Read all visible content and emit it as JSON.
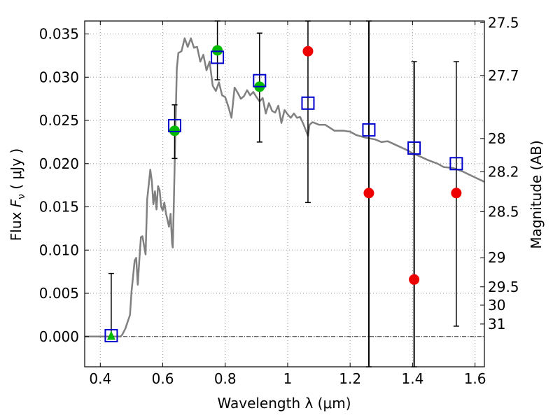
{
  "chart_data": {
    "type": "scatter",
    "xlabel": "Wavelength  λ (μm)",
    "ylabel_main": "Flux  ",
    "ylabel_sym": "F",
    "ylabel_sub": "ν",
    "ylabel_unit": "  ( μJy )",
    "y2label": "Magnitude (AB)",
    "xlim": [
      0.35,
      1.63
    ],
    "ylim": [
      -0.0035,
      0.0365
    ],
    "grid": true,
    "x_ticks": [
      {
        "v": 0.4,
        "label": "0.4"
      },
      {
        "v": 0.6,
        "label": "0.6"
      },
      {
        "v": 0.8,
        "label": "0.8"
      },
      {
        "v": 1.0,
        "label": "1"
      },
      {
        "v": 1.2,
        "label": "1.2"
      },
      {
        "v": 1.4,
        "label": "1.4"
      },
      {
        "v": 1.6,
        "label": "1.6"
      }
    ],
    "y_ticks": [
      {
        "v": 0.0,
        "label": "0.000"
      },
      {
        "v": 0.005,
        "label": "0.005"
      },
      {
        "v": 0.01,
        "label": "0.010"
      },
      {
        "v": 0.015,
        "label": "0.015"
      },
      {
        "v": 0.02,
        "label": "0.020"
      },
      {
        "v": 0.025,
        "label": "0.025"
      },
      {
        "v": 0.03,
        "label": "0.030"
      },
      {
        "v": 0.035,
        "label": "0.035"
      }
    ],
    "y2_ticks": [
      {
        "flux": 0.03631,
        "label": "27.5"
      },
      {
        "flux": 0.0302,
        "label": "27.7"
      },
      {
        "flux": 0.02291,
        "label": "28"
      },
      {
        "flux": 0.01905,
        "label": "28.2"
      },
      {
        "flux": 0.01445,
        "label": "28.5"
      },
      {
        "flux": 0.00912,
        "label": "29"
      },
      {
        "flux": 0.00575,
        "label": "29.5"
      },
      {
        "flux": 0.00363,
        "label": "30"
      },
      {
        "flux": 0.00145,
        "label": "31"
      }
    ],
    "colors": {
      "model": "#808080",
      "model_points": "#0000cc",
      "detections": "#00bb00",
      "upper_limits": "#ee0000",
      "errorbars": "#000000"
    },
    "series": [
      {
        "kind": "model_spectrum",
        "x": [
          0.35,
          0.4,
          0.45,
          0.465,
          0.47,
          0.48,
          0.495,
          0.5,
          0.51,
          0.515,
          0.52,
          0.525,
          0.53,
          0.535,
          0.545,
          0.55,
          0.56,
          0.565,
          0.57,
          0.575,
          0.58,
          0.585,
          0.59,
          0.595,
          0.6,
          0.605,
          0.61,
          0.615,
          0.62,
          0.625,
          0.63,
          0.632,
          0.635,
          0.64,
          0.645,
          0.65,
          0.66,
          0.67,
          0.68,
          0.69,
          0.7,
          0.71,
          0.72,
          0.73,
          0.74,
          0.75,
          0.76,
          0.77,
          0.78,
          0.79,
          0.8,
          0.81,
          0.82,
          0.83,
          0.84,
          0.85,
          0.86,
          0.87,
          0.88,
          0.89,
          0.9,
          0.91,
          0.92,
          0.93,
          0.94,
          0.95,
          0.96,
          0.97,
          0.98,
          0.99,
          1.0,
          1.01,
          1.02,
          1.03,
          1.04,
          1.05,
          1.06,
          1.065,
          1.07,
          1.08,
          1.1,
          1.12,
          1.15,
          1.18,
          1.2,
          1.22,
          1.25,
          1.28,
          1.3,
          1.32,
          1.35,
          1.38,
          1.4,
          1.42,
          1.45,
          1.48,
          1.5,
          1.53,
          1.56,
          1.6,
          1.63
        ],
        "y": [
          0.0,
          0.0,
          0.0,
          0.0,
          0.0002,
          0.0009,
          0.0025,
          0.0052,
          0.0088,
          0.0091,
          0.006,
          0.0089,
          0.0115,
          0.0116,
          0.0095,
          0.0158,
          0.0193,
          0.018,
          0.0153,
          0.0168,
          0.0147,
          0.0174,
          0.0169,
          0.015,
          0.0146,
          0.0155,
          0.0143,
          0.0135,
          0.0127,
          0.0142,
          0.0107,
          0.0103,
          0.0145,
          0.0232,
          0.031,
          0.0328,
          0.033,
          0.0345,
          0.0335,
          0.0345,
          0.0334,
          0.0335,
          0.0318,
          0.0326,
          0.0308,
          0.0318,
          0.029,
          0.0284,
          0.0294,
          0.0279,
          0.0277,
          0.0266,
          0.0253,
          0.0288,
          0.0282,
          0.0275,
          0.0278,
          0.0285,
          0.0279,
          0.0283,
          0.0277,
          0.0272,
          0.0276,
          0.0258,
          0.027,
          0.0261,
          0.0259,
          0.0267,
          0.0247,
          0.0262,
          0.0257,
          0.0253,
          0.0258,
          0.0253,
          0.0254,
          0.0246,
          0.0237,
          0.0232,
          0.0245,
          0.0248,
          0.0245,
          0.0245,
          0.0238,
          0.0238,
          0.0237,
          0.0233,
          0.023,
          0.0228,
          0.0225,
          0.0226,
          0.0221,
          0.0216,
          0.0212,
          0.0209,
          0.0204,
          0.02,
          0.0196,
          0.0195,
          0.0191,
          0.0184,
          0.0179
        ]
      },
      {
        "kind": "model_points",
        "marker": "open-square",
        "x": [
          0.435,
          0.638,
          0.775,
          0.91,
          1.065,
          1.26,
          1.405,
          1.54
        ],
        "y": [
          0.0001,
          0.0244,
          0.0323,
          0.0296,
          0.027,
          0.0239,
          0.0218,
          0.02
        ]
      },
      {
        "kind": "detections",
        "marker": "filled-circle",
        "x": [
          0.638,
          0.775,
          0.91
        ],
        "y": [
          0.0238,
          0.0331,
          0.0289
        ],
        "err_low": [
          0.0206,
          0.0297,
          0.0225
        ],
        "err_high": [
          0.0268,
          0.0365,
          0.0351
        ]
      },
      {
        "kind": "detection_triangle",
        "marker": "filled-triangle",
        "x": [
          0.435
        ],
        "y": [
          0.0001
        ],
        "err_low": [
          0.0
        ],
        "err_high": [
          0.0073
        ]
      },
      {
        "kind": "non_detections",
        "marker": "filled-circle",
        "x": [
          1.065,
          1.26,
          1.405,
          1.54
        ],
        "y": [
          0.033,
          0.0166,
          0.0066,
          0.0166
        ],
        "err_low": [
          0.0155,
          -0.0035,
          -0.0035,
          0.0012
        ],
        "err_high": [
          0.0365,
          0.0365,
          0.0318,
          0.0318
        ]
      }
    ]
  }
}
